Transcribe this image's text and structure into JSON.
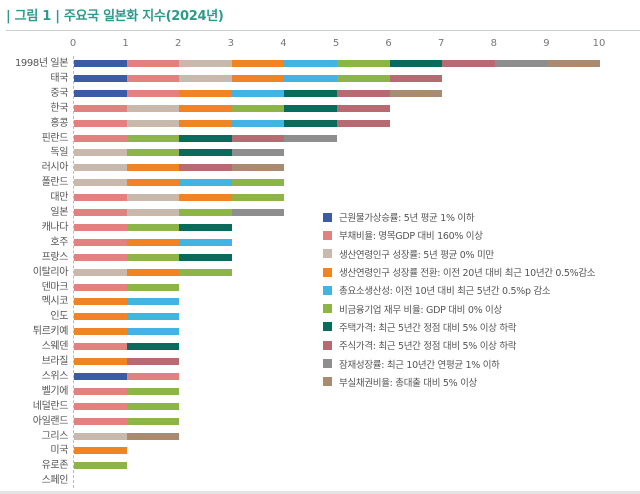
{
  "chart_data": {
    "type": "bar",
    "orientation": "horizontal-stacked",
    "title": "| 그림 1 |  주요국 일본화 지수(2024년)",
    "xlabel": "",
    "ylabel": "",
    "xlim": [
      0,
      10
    ],
    "x_ticks": [
      "0",
      "1",
      "2",
      "3",
      "4",
      "5",
      "6",
      "7",
      "8",
      "9",
      "10"
    ],
    "grid": false,
    "legend_position": "right-middle",
    "indicators": [
      {
        "key": "A",
        "label": "근원물가상승률: 5년 평균 1% 이하",
        "color": "#3b5ba5"
      },
      {
        "key": "B",
        "label": "부채비율: 명목GDP 대비 160% 이상",
        "color": "#e38080"
      },
      {
        "key": "C",
        "label": "생산연령인구 성장률: 5년 평균 0% 미만",
        "color": "#c8b9ac"
      },
      {
        "key": "D",
        "label": "생산연령인구 성장률 전환: 이전 20년 대비 최근 10년간 0.5%감소",
        "color": "#f08324"
      },
      {
        "key": "E",
        "label": "총요소생산성: 이전 10년 대비 최근 5년간 0.5%p 감소",
        "color": "#41b4e2"
      },
      {
        "key": "F",
        "label": "비금융기업 재무 비율: GDP 대비 0% 이상",
        "color": "#8cb446"
      },
      {
        "key": "G",
        "label": "주택가격: 최근 5년간 정점 대비 5% 이상 하락",
        "color": "#0a6b5c"
      },
      {
        "key": "H",
        "label": "주식가격: 최근 5년간 정점 대비 5% 이상 하락",
        "color": "#b76a72"
      },
      {
        "key": "I",
        "label": "잠재성장률: 최근 10년간 연평균 1% 이하",
        "color": "#8e8e8e"
      },
      {
        "key": "J",
        "label": "부실채권비율: 총대출 대비 5% 이상",
        "color": "#a98b72"
      }
    ],
    "categories": [
      "1998년 일본",
      "태국",
      "중국",
      "한국",
      "홍콩",
      "핀란드",
      "독일",
      "러시아",
      "폴란드",
      "대만",
      "일본",
      "캐나다",
      "호주",
      "프랑스",
      "이탈리아",
      "덴마크",
      "멕시코",
      "인도",
      "튀르키예",
      "스웨덴",
      "브라질",
      "스위스",
      "벨기에",
      "네덜란드",
      "아일랜드",
      "그리스",
      "미국",
      "유로존",
      "스페인"
    ],
    "values": [
      10,
      7,
      7,
      6,
      6,
      5,
      4,
      4,
      4,
      4,
      4,
      3,
      3,
      3,
      3,
      2,
      2,
      2,
      2,
      2,
      2,
      2,
      2,
      2,
      2,
      2,
      1,
      1,
      0
    ],
    "segments": [
      [
        "A",
        "B",
        "C",
        "D",
        "E",
        "F",
        "G",
        "H",
        "I",
        "J"
      ],
      [
        "A",
        "B",
        "C",
        "D",
        "E",
        "F",
        "H"
      ],
      [
        "A",
        "B",
        "D",
        "E",
        "G",
        "H",
        "J"
      ],
      [
        "B",
        "C",
        "D",
        "F",
        "G",
        "H"
      ],
      [
        "B",
        "C",
        "D",
        "E",
        "G",
        "H"
      ],
      [
        "B",
        "F",
        "G",
        "H",
        "I"
      ],
      [
        "C",
        "F",
        "G",
        "I"
      ],
      [
        "C",
        "D",
        "H",
        "J"
      ],
      [
        "C",
        "D",
        "E",
        "F"
      ],
      [
        "B",
        "C",
        "D",
        "F"
      ],
      [
        "B",
        "C",
        "F",
        "I"
      ],
      [
        "B",
        "F",
        "G"
      ],
      [
        "B",
        "D",
        "E"
      ],
      [
        "B",
        "F",
        "G"
      ],
      [
        "C",
        "D",
        "F"
      ],
      [
        "B",
        "F"
      ],
      [
        "D",
        "E"
      ],
      [
        "D",
        "E"
      ],
      [
        "D",
        "E"
      ],
      [
        "B",
        "G"
      ],
      [
        "D",
        "H"
      ],
      [
        "A",
        "B"
      ],
      [
        "B",
        "F"
      ],
      [
        "B",
        "F"
      ],
      [
        "B",
        "F"
      ],
      [
        "C",
        "J"
      ],
      [
        "D"
      ],
      [
        "F"
      ],
      []
    ]
  }
}
